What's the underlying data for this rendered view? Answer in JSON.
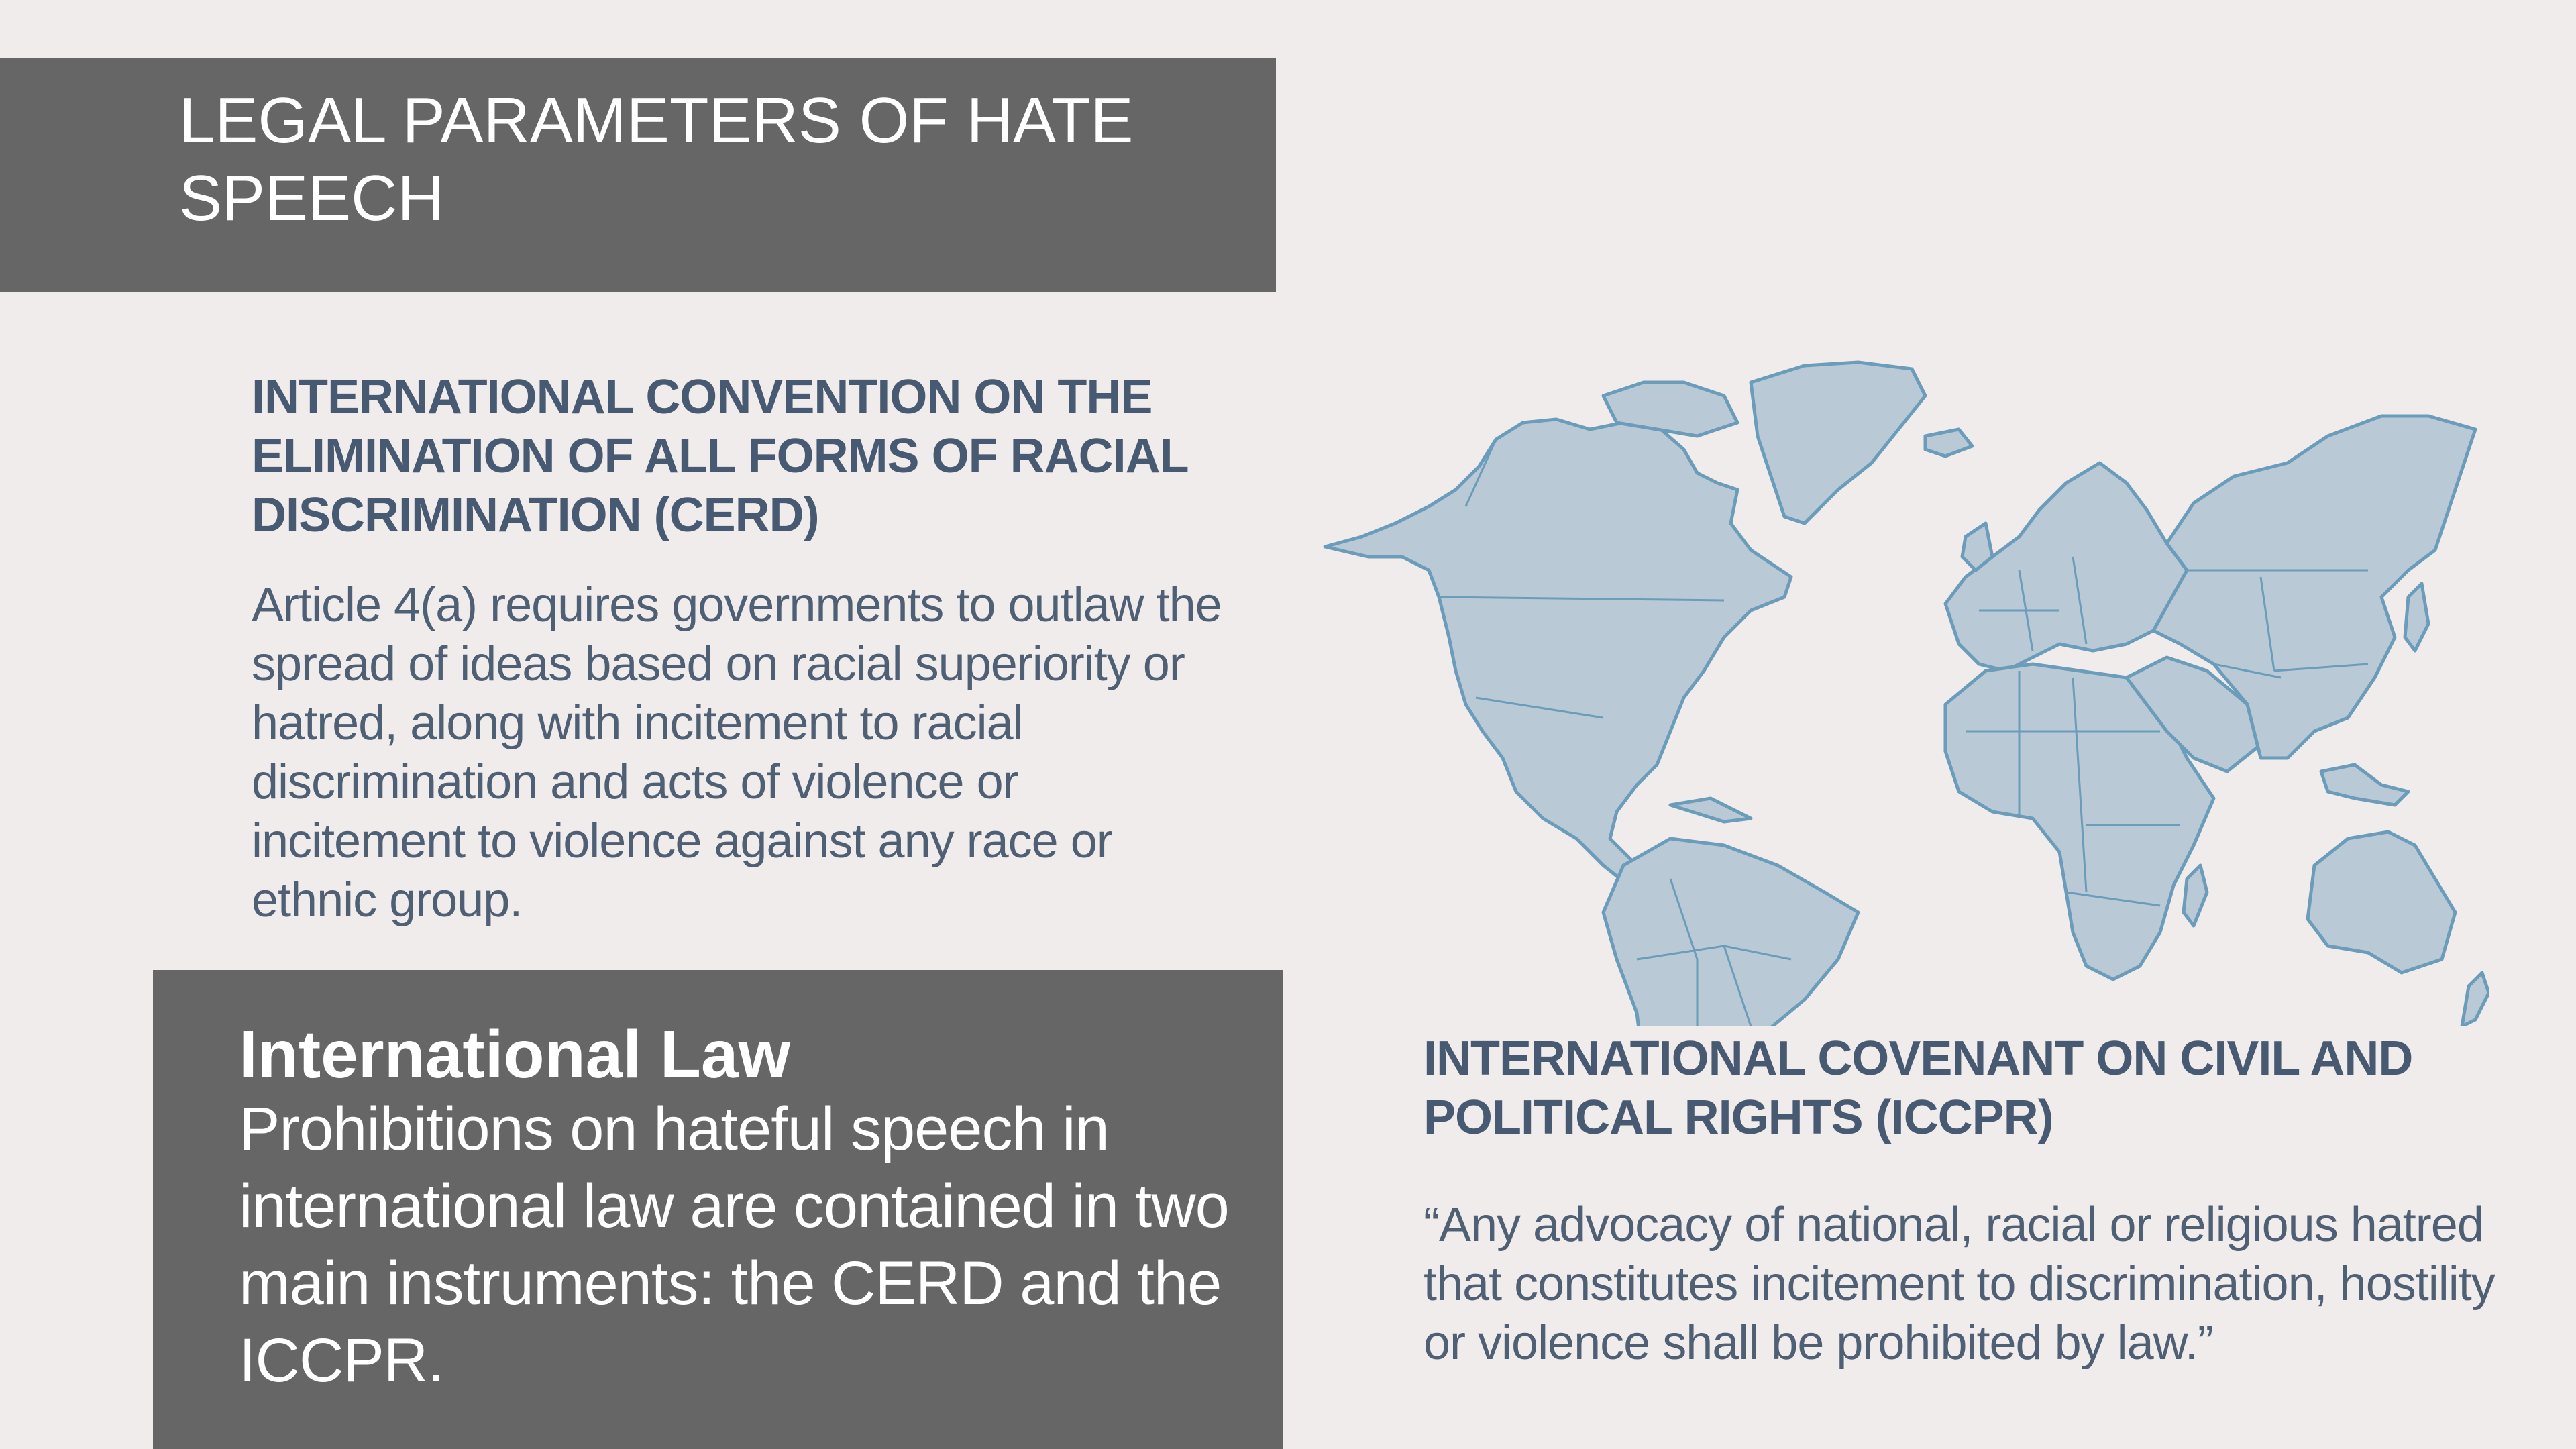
{
  "header": {
    "title": "LEGAL PARAMETERS OF HATE SPEECH"
  },
  "cerd": {
    "heading": "INTERNATIONAL CONVENTION ON THE ELIMINATION OF ALL FORMS OF RACIAL DISCRIMINATION (CERD)",
    "body": "Article 4(a) requires governments to outlaw the spread of ideas based on racial superiority or hatred, along with incitement to racial discrimination and acts of violence or incitement to violence against any race or ethnic group."
  },
  "international_law": {
    "title": "International Law",
    "body": "Prohibitions on hateful speech in international law are contained in two main instruments: the CERD and the ICCPR."
  },
  "iccpr": {
    "heading": "INTERNATIONAL COVENANT ON CIVIL AND POLITICAL RIGHTS (ICCPR)",
    "body": "“Any advocacy of national, racial or religious hatred that constitutes incitement to discrimination, hostility or violence shall be prohibited by law.”"
  },
  "colors": {
    "background": "#f0ecec",
    "panel": "#666666",
    "heading_text": "#485a72",
    "body_text": "#4f5f74",
    "map_fill": "#bac9d6",
    "map_stroke": "#6b9cb9"
  }
}
